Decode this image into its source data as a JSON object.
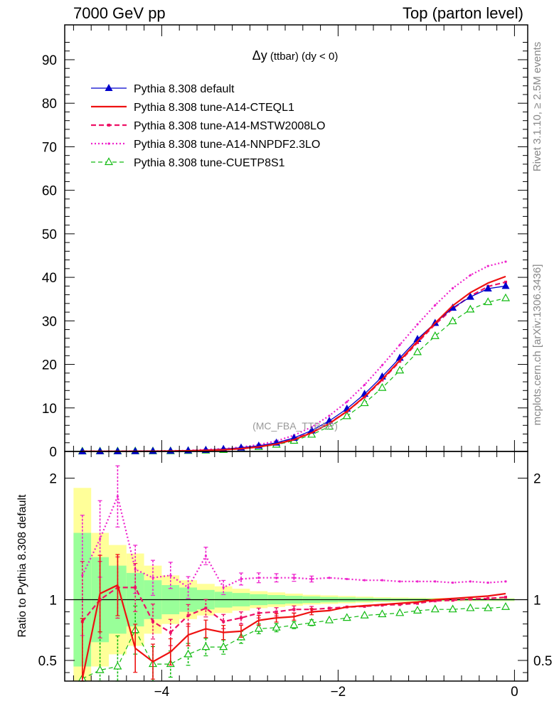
{
  "header": {
    "left": "7000 GeV pp",
    "right": "Top (parton level)"
  },
  "side_labels": {
    "rivet": "Rivet 3.1.10, ≥ 2.5M events",
    "mcplots": "mcplots.cern.ch [arXiv:1306.3436]"
  },
  "colors": {
    "default": "#0000cc",
    "cteql1": "#ee1111",
    "mstw": "#ee1166",
    "nnpdf": "#ee22cc",
    "cuetp8s1": "#11bb11",
    "band_yellow": "#ffff99",
    "band_green": "#99ff99"
  },
  "chart_data": [
    {
      "id": "main",
      "type": "line",
      "title_symbol": "Δy",
      "title_rest": " (ttbar) (dy < 0)",
      "watermark": "(MC_FBA_TTBAR)",
      "xlim": [
        -5.1,
        0.15
      ],
      "ylim": [
        0,
        98
      ],
      "yticks": [
        0,
        10,
        20,
        30,
        40,
        50,
        60,
        70,
        80,
        90
      ],
      "x": [
        -4.9,
        -4.7,
        -4.5,
        -4.3,
        -4.1,
        -3.9,
        -3.7,
        -3.5,
        -3.3,
        -3.1,
        -2.9,
        -2.7,
        -2.5,
        -2.3,
        -2.1,
        -1.9,
        -1.7,
        -1.5,
        -1.3,
        -1.1,
        -0.9,
        -0.7,
        -0.5,
        -0.3,
        -0.1
      ],
      "legend": [
        "Pythia 8.308 default",
        "Pythia 8.308 tune-A14-CTEQL1",
        "Pythia 8.308 tune-A14-MSTW2008LO",
        "Pythia 8.308 tune-A14-NNPDF2.3LO",
        "Pythia 8.308 tune-CUETP8S1"
      ],
      "series": [
        {
          "name": "Pythia 8.308 default",
          "values": [
            0.01,
            0.02,
            0.03,
            0.05,
            0.08,
            0.12,
            0.2,
            0.33,
            0.55,
            0.85,
            1.3,
            2.0,
            3.1,
            4.8,
            7.0,
            9.8,
            13.2,
            17.2,
            21.5,
            25.8,
            29.5,
            33.0,
            35.5,
            37.4,
            38.0
          ]
        },
        {
          "name": "Pythia 8.308 tune-A14-CTEQL1",
          "values": [
            0.01,
            0.02,
            0.03,
            0.04,
            0.05,
            0.08,
            0.14,
            0.24,
            0.4,
            0.63,
            1.05,
            1.7,
            2.7,
            4.3,
            6.4,
            9.2,
            12.6,
            16.6,
            20.9,
            25.3,
            29.5,
            33.5,
            36.5,
            38.7,
            40.2
          ]
        },
        {
          "name": "Pythia 8.308 tune-A14-MSTW2008LO",
          "values": [
            0.01,
            0.02,
            0.03,
            0.05,
            0.06,
            0.09,
            0.17,
            0.3,
            0.45,
            0.72,
            1.15,
            1.8,
            2.85,
            4.4,
            6.5,
            9.2,
            12.5,
            16.4,
            20.7,
            25.0,
            29.2,
            32.8,
            35.7,
            37.9,
            38.9
          ]
        },
        {
          "name": "Pythia 8.308 tune-A14-NNPDF2.3LO",
          "values": [
            0.01,
            0.03,
            0.05,
            0.06,
            0.09,
            0.14,
            0.22,
            0.45,
            0.6,
            1.0,
            1.55,
            2.4,
            3.7,
            5.6,
            8.2,
            11.4,
            15.3,
            19.8,
            24.5,
            29.2,
            33.6,
            37.5,
            40.5,
            42.6,
            43.6
          ]
        },
        {
          "name": "Pythia 8.308 tune-CUETP8S1",
          "values": [
            0.005,
            0.01,
            0.02,
            0.04,
            0.04,
            0.06,
            0.11,
            0.2,
            0.34,
            0.6,
            1.0,
            1.55,
            2.45,
            3.85,
            5.7,
            8.1,
            11.1,
            14.6,
            18.6,
            22.8,
            26.5,
            29.9,
            32.6,
            34.3,
            35.2
          ]
        }
      ]
    },
    {
      "id": "ratio",
      "type": "line",
      "ylabel": "Ratio to Pythia 8.308 default",
      "xlim": [
        -5.1,
        0.15
      ],
      "ylim": [
        0.33,
        2.22
      ],
      "yticks": [
        0.5,
        1,
        2
      ],
      "ytick_labels": [
        "0.5",
        "1",
        "2"
      ],
      "xticks": [
        -4,
        -2,
        0
      ],
      "xtick_labels": [
        "−4",
        "−2",
        "0"
      ],
      "x": [
        -4.9,
        -4.7,
        -4.5,
        -4.3,
        -4.1,
        -3.9,
        -3.7,
        -3.5,
        -3.3,
        -3.1,
        -2.9,
        -2.7,
        -2.5,
        -2.3,
        -2.1,
        -1.9,
        -1.7,
        -1.5,
        -1.3,
        -1.1,
        -0.9,
        -0.7,
        -0.5,
        -0.3,
        -0.1
      ],
      "band_yellow": [
        0.92,
        0.55,
        0.45,
        0.38,
        0.28,
        0.2,
        0.16,
        0.13,
        0.11,
        0.09,
        0.07,
        0.06,
        0.05,
        0.04,
        0.035,
        0.03,
        0.025,
        0.02,
        0.018,
        0.016,
        0.014,
        0.013,
        0.012,
        0.012,
        0.012
      ],
      "band_green": [
        0.55,
        0.35,
        0.28,
        0.22,
        0.16,
        0.12,
        0.1,
        0.08,
        0.065,
        0.055,
        0.045,
        0.038,
        0.032,
        0.027,
        0.022,
        0.019,
        0.016,
        0.013,
        0.011,
        0.01,
        0.009,
        0.008,
        0.008,
        0.008,
        0.008
      ],
      "series": [
        {
          "name": "Pythia 8.308 tune-A14-CTEQL1",
          "values": [
            0.35,
            1.05,
            1.12,
            0.6,
            0.49,
            0.57,
            0.71,
            0.76,
            0.73,
            0.74,
            0.83,
            0.85,
            0.86,
            0.9,
            0.91,
            0.94,
            0.95,
            0.96,
            0.97,
            0.98,
            1.0,
            1.01,
            1.02,
            1.03,
            1.05
          ]
        },
        {
          "name": "Pythia 8.308 tune-A14-MSTW2008LO",
          "values": [
            0.82,
            1.0,
            1.1,
            1.1,
            0.82,
            0.73,
            0.87,
            0.93,
            0.82,
            0.85,
            0.89,
            0.9,
            0.92,
            0.92,
            0.93,
            0.94,
            0.945,
            0.955,
            0.96,
            0.97,
            0.99,
            0.995,
            1.005,
            1.01,
            1.02
          ]
        },
        {
          "name": "Pythia 8.308 tune-A14-NNPDF2.3LO",
          "values": [
            1.2,
            1.5,
            1.85,
            1.25,
            1.18,
            1.2,
            1.1,
            1.36,
            1.1,
            1.17,
            1.18,
            1.18,
            1.18,
            1.17,
            1.18,
            1.17,
            1.16,
            1.16,
            1.15,
            1.15,
            1.15,
            1.14,
            1.15,
            1.14,
            1.15
          ]
        },
        {
          "name": "Pythia 8.308 tune-CUETP8S1",
          "values": [
            0.35,
            0.42,
            0.45,
            0.75,
            0.47,
            0.47,
            0.55,
            0.61,
            0.61,
            0.69,
            0.76,
            0.77,
            0.79,
            0.81,
            0.83,
            0.85,
            0.87,
            0.88,
            0.89,
            0.91,
            0.92,
            0.92,
            0.93,
            0.93,
            0.94
          ]
        }
      ]
    }
  ]
}
